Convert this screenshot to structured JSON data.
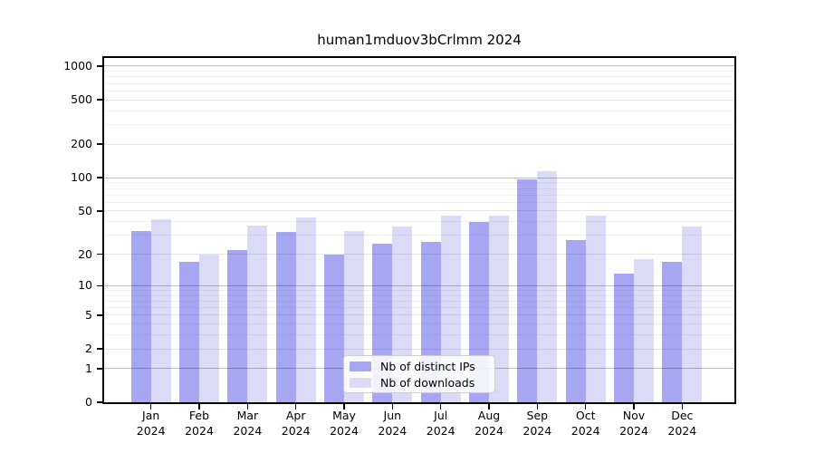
{
  "figure": {
    "title": "human1mduov3bCrlmm 2024"
  },
  "chart_data": {
    "type": "bar",
    "title": "human1mduov3bCrlmm 2024",
    "x_categories": [
      "Jan",
      "Feb",
      "Mar",
      "Apr",
      "May",
      "Jun",
      "Jul",
      "Aug",
      "Sep",
      "Oct",
      "Nov",
      "Dec"
    ],
    "x_year": "2024",
    "series": [
      {
        "name": "Nb of distinct IPs",
        "color": "#a6a6f2",
        "values": [
          33,
          17,
          22,
          32,
          20,
          25,
          26,
          40,
          97,
          27,
          13,
          17
        ]
      },
      {
        "name": "Nb of downloads",
        "color": "#dbdbf8",
        "values": [
          42,
          20,
          37,
          44,
          33,
          36,
          45,
          45,
          115,
          45,
          18,
          36
        ]
      }
    ],
    "y_axis": {
      "scale": "log1p",
      "ticks": [
        0,
        1,
        2,
        5,
        10,
        20,
        50,
        100,
        200,
        500,
        1000
      ],
      "top_value": 1200
    },
    "grid": true,
    "legend": {
      "position": "lower center",
      "items": [
        "Nb of distinct IPs",
        "Nb of downloads"
      ]
    }
  }
}
